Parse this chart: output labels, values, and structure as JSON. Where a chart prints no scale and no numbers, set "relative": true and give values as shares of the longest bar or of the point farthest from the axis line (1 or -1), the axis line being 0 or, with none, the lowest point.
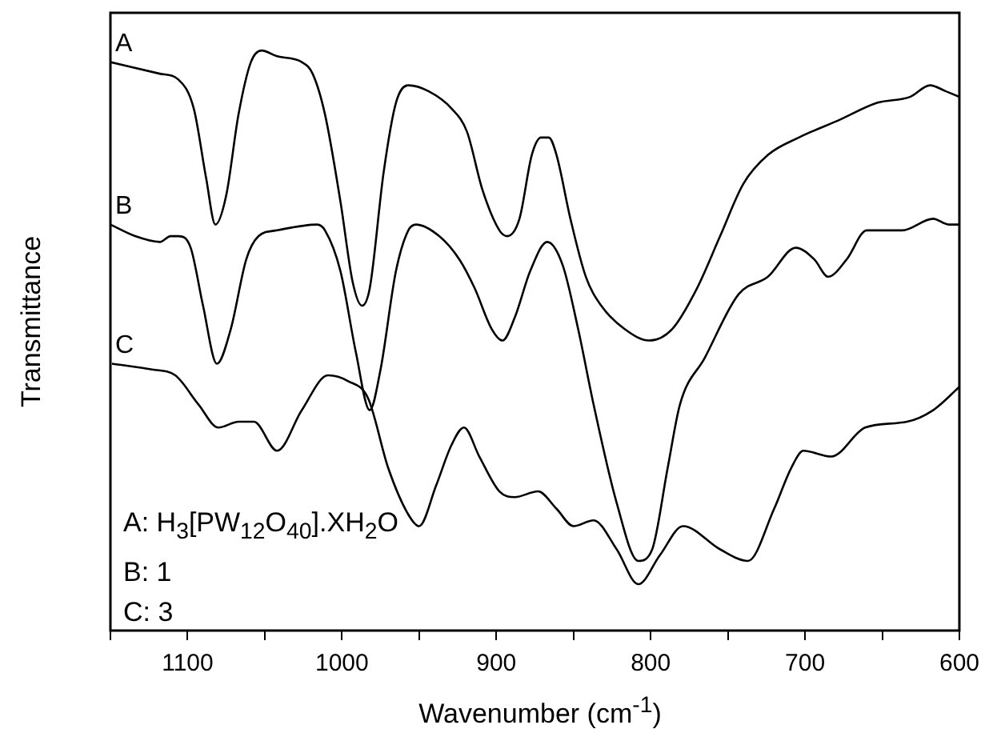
{
  "chart_data": {
    "type": "line",
    "relative": true,
    "xlabel": "Wavenumber (cm$^{-1}$)",
    "ylabel": "Transmittance",
    "xlim": [
      1150,
      600
    ],
    "xticks": [
      {
        "value": 1150,
        "label": null
      },
      1100,
      {
        "value": 1050,
        "label": null
      },
      1000,
      {
        "value": 950,
        "label": null
      },
      900,
      {
        "value": 850,
        "label": null
      },
      800,
      {
        "value": 750,
        "label": null
      },
      700,
      {
        "value": 650,
        "label": null
      },
      600
    ],
    "grid": false,
    "legend": false,
    "marker": "none",
    "line_style": "solid",
    "annotations": [
      "A: H$_{3}$[PW$_{12}$O$_{40}$].XH$_{2}$O",
      "B: 1",
      "C: 3"
    ],
    "series": [
      {
        "name": "A",
        "color": "#000000",
        "x": [
          1150,
          1118,
          1106,
          1096,
          1088,
          1082,
          1075,
          1067,
          1059,
          1052,
          1042,
          1026,
          1019,
          1011,
          1001,
          993,
          987,
          982,
          973,
          965,
          957,
          944,
          929,
          919,
          909,
          898,
          893,
          885,
          877,
          871,
          866,
          861,
          852,
          842,
          832,
          817,
          801,
          786,
          770,
          755,
          740,
          724,
          704,
          678,
          653,
          632,
          619,
          609,
          600
        ],
        "values": [
          0.98,
          0.96,
          0.95,
          0.9,
          0.78,
          0.7,
          0.75,
          0.89,
          0.98,
          1.0,
          0.99,
          0.98,
          0.96,
          0.89,
          0.74,
          0.6,
          0.56,
          0.59,
          0.79,
          0.91,
          0.94,
          0.93,
          0.9,
          0.86,
          0.76,
          0.69,
          0.68,
          0.71,
          0.82,
          0.85,
          0.85,
          0.82,
          0.71,
          0.61,
          0.56,
          0.52,
          0.5,
          0.52,
          0.59,
          0.68,
          0.77,
          0.82,
          0.85,
          0.88,
          0.91,
          0.92,
          0.94,
          0.93,
          0.92
        ]
      },
      {
        "name": "B",
        "color": "#000000",
        "x": [
          1150,
          1134,
          1118,
          1111,
          1106,
          1098,
          1090,
          1081,
          1072,
          1062,
          1054,
          1042,
          1016,
          1011,
          1001,
          991,
          982,
          975,
          965,
          957,
          952,
          937,
          924,
          914,
          903,
          896,
          888,
          878,
          867,
          857,
          847,
          837,
          822,
          808,
          799,
          789,
          781,
          765,
          743,
          724,
          706,
          694,
          685,
          673,
          660,
          637,
          617,
          607,
          600
        ],
        "values": [
          0.7,
          0.68,
          0.67,
          0.68,
          0.68,
          0.66,
          0.56,
          0.46,
          0.52,
          0.64,
          0.68,
          0.69,
          0.7,
          0.69,
          0.62,
          0.48,
          0.38,
          0.45,
          0.62,
          0.69,
          0.7,
          0.68,
          0.64,
          0.59,
          0.52,
          0.5,
          0.54,
          0.62,
          0.67,
          0.63,
          0.52,
          0.39,
          0.22,
          0.12,
          0.14,
          0.28,
          0.39,
          0.47,
          0.58,
          0.61,
          0.66,
          0.64,
          0.61,
          0.64,
          0.69,
          0.69,
          0.71,
          0.7,
          0.7
        ]
      },
      {
        "name": "C",
        "color": "#000000",
        "x": [
          1149,
          1123,
          1108,
          1093,
          1080,
          1067,
          1057,
          1042,
          1026,
          1009,
          996,
          983,
          970,
          957,
          950,
          939,
          929,
          921,
          911,
          898,
          888,
          873,
          861,
          850,
          837,
          822,
          808,
          794,
          779,
          755,
          737,
          720,
          709,
          701,
          683,
          661,
          634,
          617,
          600
        ],
        "values": [
          0.46,
          0.45,
          0.44,
          0.39,
          0.35,
          0.36,
          0.36,
          0.31,
          0.38,
          0.44,
          0.43,
          0.4,
          0.28,
          0.2,
          0.18,
          0.25,
          0.32,
          0.35,
          0.3,
          0.24,
          0.23,
          0.24,
          0.21,
          0.18,
          0.19,
          0.14,
          0.08,
          0.13,
          0.18,
          0.14,
          0.12,
          0.21,
          0.28,
          0.31,
          0.3,
          0.35,
          0.36,
          0.38,
          0.42
        ]
      }
    ]
  }
}
